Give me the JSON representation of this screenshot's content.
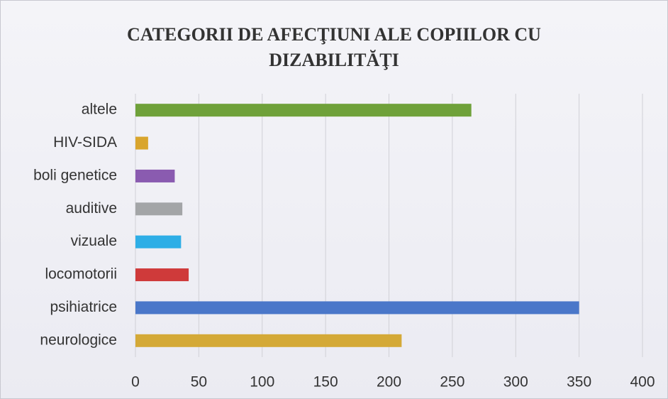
{
  "chart_data": {
    "type": "bar",
    "orientation": "horizontal",
    "title": "CATEGORII DE AFECŢIUNI ALE COPIILOR CU DIZABILITĂŢI",
    "categories": [
      "altele",
      "HIV-SIDA",
      "boli genetice",
      "auditive",
      "vizuale",
      "locomotorii",
      "psihiatrice",
      "neurologice"
    ],
    "values": [
      265,
      10,
      31,
      37,
      36,
      42,
      350,
      210
    ],
    "colors": [
      "#6fa13a",
      "#d9a52d",
      "#8a5bb0",
      "#a3a5a7",
      "#2eaee6",
      "#cf3a3a",
      "#4a77c9",
      "#d4a937"
    ],
    "xlim": [
      0,
      400
    ],
    "xticks": [
      0,
      50,
      100,
      150,
      200,
      250,
      300,
      350,
      400
    ],
    "grid": true
  }
}
